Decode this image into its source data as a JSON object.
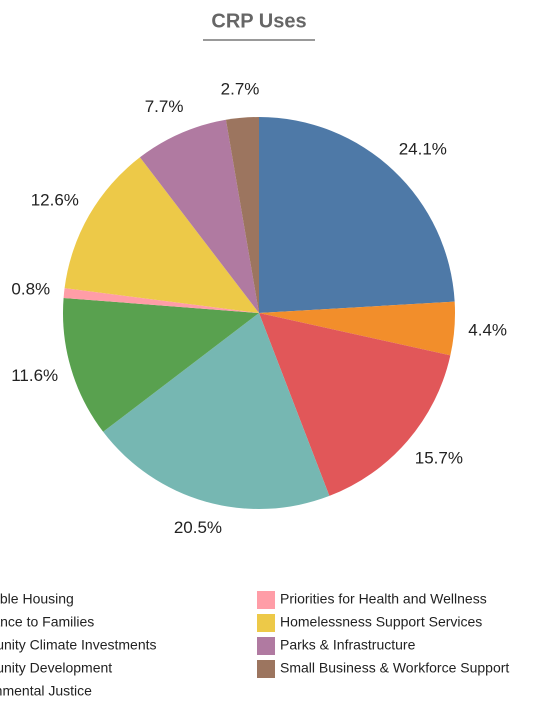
{
  "chart_data": {
    "type": "pie",
    "title": "CRP Uses",
    "categories": [
      "Affordable Housing",
      "Assistance to Families",
      "Community Climate Investments",
      "Community Development",
      "Environmental Justice",
      "Priorities for Health and Wellness",
      "Homelessness Support Services",
      "Parks & Infrastructure",
      "Small Business & Workforce Support"
    ],
    "values": [
      24.1,
      4.4,
      15.7,
      20.5,
      11.6,
      0.8,
      12.6,
      7.7,
      2.7
    ],
    "value_labels": [
      "24.1%",
      "4.4%",
      "15.7%",
      "20.5%",
      "11.6%",
      "0.8%",
      "12.6%",
      "7.7%",
      "2.7%"
    ],
    "colors": [
      "#4e79a7",
      "#f28e2b",
      "#e15759",
      "#76b7b2",
      "#59a14f",
      "#ff9da7",
      "#edc948",
      "#b07aa1",
      "#9c755f"
    ],
    "legend": "bottom"
  }
}
